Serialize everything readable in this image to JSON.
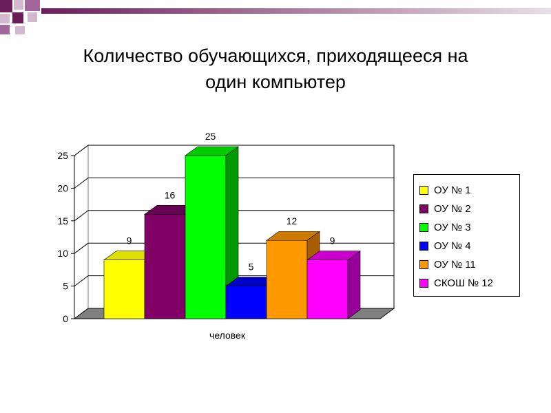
{
  "slide": {
    "title_line1": "Количество обучающихся, приходящееся на",
    "title_line2": "один компьютер"
  },
  "colors": {
    "deco_dark": "#6b1f5a",
    "deco_mid": "#a3669a",
    "deco_light": "#d4b8cf"
  },
  "chart_data": {
    "type": "bar",
    "title": "",
    "xlabel": "человек",
    "ylabel": "",
    "categories": [
      "человек"
    ],
    "ylim": [
      0,
      25
    ],
    "yticks": [
      0,
      5,
      10,
      15,
      20,
      25
    ],
    "grid": true,
    "legend_position": "right",
    "series": [
      {
        "name": "ОУ № 1",
        "values": [
          9
        ],
        "color": "#ffff00",
        "side": "#b3b300",
        "top": "#e0e000"
      },
      {
        "name": "ОУ № 2",
        "values": [
          16
        ],
        "color": "#800066",
        "side": "#4d003d",
        "top": "#660052"
      },
      {
        "name": "ОУ № 3",
        "values": [
          25
        ],
        "color": "#00ff00",
        "side": "#009900",
        "top": "#00cc00"
      },
      {
        "name": "ОУ № 4",
        "values": [
          5
        ],
        "color": "#0000ff",
        "side": "#00008c",
        "top": "#0000c8"
      },
      {
        "name": "ОУ № 11",
        "values": [
          12
        ],
        "color": "#ff9900",
        "side": "#a65e00",
        "top": "#cc7a00"
      },
      {
        "name": "СКОШ № 12",
        "values": [
          9
        ],
        "color": "#ff00ff",
        "side": "#99009a",
        "top": "#cc00cc"
      }
    ]
  }
}
